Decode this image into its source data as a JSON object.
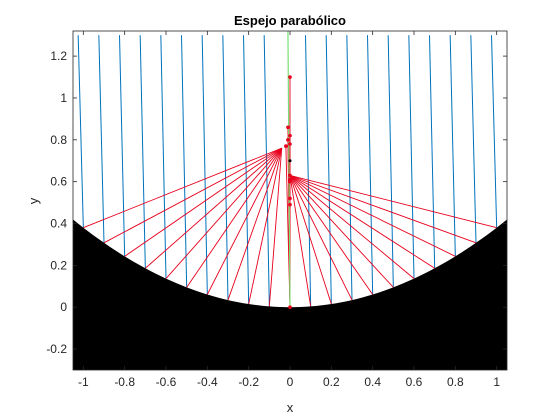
{
  "chart_data": {
    "type": "line",
    "title": "Espejo parabólico",
    "xlabel": "x",
    "ylabel": "y",
    "xlim": [
      -1.05,
      1.05
    ],
    "ylim": [
      -0.3,
      1.32
    ],
    "xticks": [
      -1,
      -0.8,
      -0.6,
      -0.4,
      -0.2,
      0,
      0.2,
      0.4,
      0.6,
      0.8,
      1
    ],
    "xtick_labels": [
      "-1",
      "-0.8",
      "-0.6",
      "-0.4",
      "-0.2",
      "0",
      "0.2",
      "0.4",
      "0.6",
      "0.8",
      "1"
    ],
    "yticks": [
      -0.2,
      0,
      0.2,
      0.4,
      0.6,
      0.8,
      1,
      1.2
    ],
    "ytick_labels": [
      "-0.2",
      "0",
      "0.2",
      "0.4",
      "0.6",
      "0.8",
      "1",
      "1.2"
    ],
    "mirror": {
      "equation": "y = 0.38 x^2",
      "x_range": [
        -1.05,
        1.05
      ],
      "fill_color": "#000000"
    },
    "incident_rays": {
      "color": "#0072BD",
      "x_positions": [
        -1,
        -0.9,
        -0.8,
        -0.7,
        -0.6,
        -0.5,
        -0.4,
        -0.3,
        -0.2,
        -0.1,
        0.1,
        0.2,
        0.3,
        0.4,
        0.5,
        0.6,
        0.7,
        0.8,
        0.9,
        1
      ],
      "top_y": 1.3,
      "top_x_shift": -0.025
    },
    "axis_ray": {
      "color": "#77E070",
      "x_bottom": 0,
      "x_top": -0.01,
      "y_top": 1.32
    },
    "reflected_rays": {
      "color": "#E8001C",
      "left_focus": [
        -0.04,
        0.76
      ],
      "right_focus": [
        0.0,
        0.63
      ],
      "focus_points": [
        [
          0,
          1.1
        ],
        [
          -0.01,
          0.86
        ],
        [
          0,
          0.82
        ],
        [
          -0.01,
          0.8
        ],
        [
          0,
          0.78
        ],
        [
          -0.02,
          0.77
        ],
        [
          0,
          0.63
        ],
        [
          0,
          0.61
        ],
        [
          0,
          0.6
        ],
        [
          0,
          0.52
        ],
        [
          0,
          0.49
        ],
        [
          0,
          0.0
        ]
      ],
      "focus_marker": [
        0,
        0.7
      ]
    }
  }
}
